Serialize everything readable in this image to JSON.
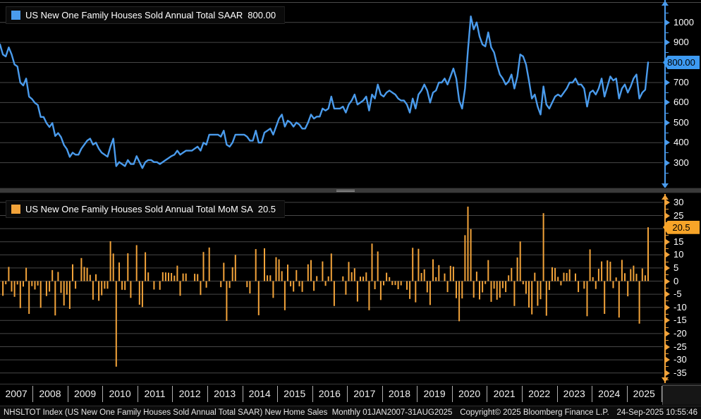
{
  "panels": {
    "top": {
      "legend_label": "US New One Family Houses Sold Annual Total SAAR",
      "legend_value": "800.00",
      "badge": "800.00",
      "color": "#4A9BEC",
      "badge_color": "#3D9AF2"
    },
    "bottom": {
      "legend_label": "US New One Family Houses Sold Annual Total MoM SA",
      "legend_value": "20.5",
      "badge": "20.5",
      "color": "#F2A33A",
      "badge_color": "#F7A428"
    }
  },
  "x_axis": {
    "years": [
      "2007",
      "2008",
      "2009",
      "2010",
      "2011",
      "2012",
      "2013",
      "2014",
      "2015",
      "2016",
      "2017",
      "2018",
      "2019",
      "2020",
      "2021",
      "2022",
      "2023",
      "2024",
      "2025"
    ]
  },
  "status_bar": {
    "left": "NHSLTOT Index (US New One Family Houses Sold Annual Total SAAR) New Home Sales  Monthly 01JAN2007-31AUG2025",
    "center": "Copyright© 2025 Bloomberg Finance L.P.",
    "right": "24-Sep-2025 10:55:46"
  },
  "chart_data": [
    {
      "type": "line",
      "title": "US New One Family Houses Sold Annual Total SAAR",
      "frequency": "monthly",
      "x_start": "2007-01",
      "x_end": "2025-08",
      "ylim": [
        250,
        1060
      ],
      "yticks": [
        1000,
        900,
        800,
        700,
        600,
        500,
        400,
        300
      ],
      "last_value": 800.0,
      "color": "#4A9BEC",
      "legend_position": "top-left",
      "grid": true,
      "values": [
        890,
        840,
        830,
        875,
        840,
        790,
        780,
        700,
        685,
        720,
        630,
        618,
        598,
        588,
        528,
        528,
        498,
        478,
        498,
        433,
        448,
        428,
        388,
        368,
        329,
        350,
        340,
        340,
        370,
        390,
        410,
        420,
        390,
        400,
        370,
        350,
        340,
        330,
        380,
        420,
        283,
        303,
        293,
        283,
        313,
        293,
        293,
        333,
        303,
        273,
        303,
        313,
        313,
        303,
        303,
        293,
        303,
        313,
        323,
        333,
        340,
        360,
        340,
        350,
        360,
        360,
        360,
        370,
        380,
        360,
        400,
        390,
        440,
        440,
        440,
        440,
        430,
        460,
        390,
        380,
        400,
        440,
        440,
        440,
        440,
        430,
        410,
        410,
        460,
        400,
        400,
        450,
        460,
        470,
        440,
        480,
        520,
        540,
        480,
        510,
        500,
        480,
        500,
        490,
        470,
        470,
        500,
        540,
        520,
        530,
        530,
        570,
        560,
        570,
        630,
        570,
        570,
        570,
        580,
        550,
        590,
        610,
        640,
        590,
        600,
        610,
        630,
        560,
        640,
        620,
        690,
        640,
        630,
        650,
        660,
        650,
        640,
        620,
        610,
        610,
        590,
        550,
        620,
        570,
        640,
        660,
        690,
        660,
        600,
        650,
        660,
        700,
        700,
        720,
        690,
        730,
        770,
        720,
        610,
        570,
        670,
        860,
        1030,
        965,
        1000,
        930,
        890,
        880,
        950,
        875,
        850,
        790,
        740,
        720,
        690,
        705,
        740,
        670,
        730,
        840,
        830,
        790,
        710,
        620,
        640,
        580,
        540,
        680,
        590,
        570,
        600,
        630,
        640,
        630,
        650,
        670,
        700,
        700,
        720,
        690,
        690,
        670,
        580,
        650,
        660,
        640,
        670,
        720,
        630,
        680,
        730,
        710,
        720,
        620,
        670,
        690,
        650,
        680,
        720,
        740,
        620,
        650,
        664,
        800
      ]
    },
    {
      "type": "bar",
      "title": "US New One Family Houses Sold Annual Total MoM SA",
      "frequency": "monthly",
      "x_start": "2007-01",
      "x_end": "2025-08",
      "unit": "percent",
      "ylim": [
        -37,
        32
      ],
      "yticks": [
        30,
        25,
        20,
        15,
        10,
        5,
        0,
        -5,
        -10,
        -15,
        -20,
        -25,
        -30,
        -35
      ],
      "last_value": 20.5,
      "color": "#F2A33A",
      "legend_position": "top-left",
      "grid": true,
      "values": [
        0,
        -5.6,
        -1.2,
        5.4,
        -4.0,
        -6.0,
        -1.3,
        -10.3,
        -2.1,
        5.1,
        -12.5,
        -1.9,
        -3.2,
        -1.7,
        -10.2,
        0.0,
        -5.7,
        -4.0,
        4.2,
        -13.1,
        3.5,
        -4.5,
        -9.3,
        -5.2,
        -10.6,
        6.4,
        -2.9,
        0.0,
        8.8,
        5.4,
        5.1,
        2.4,
        -7.1,
        2.6,
        -7.5,
        -5.4,
        -2.9,
        -2.9,
        15.2,
        10.5,
        -32.6,
        7.1,
        -3.3,
        -3.4,
        10.6,
        -6.4,
        0.0,
        13.7,
        -9.0,
        -9.9,
        11.0,
        3.3,
        0.0,
        -3.2,
        0.0,
        -3.3,
        3.4,
        3.3,
        3.2,
        3.1,
        2.1,
        5.9,
        -5.6,
        2.9,
        2.9,
        0.0,
        0.0,
        2.8,
        2.7,
        -5.3,
        11.1,
        -2.5,
        12.8,
        0.0,
        0.0,
        0.0,
        -2.3,
        7.0,
        -15.2,
        -2.6,
        5.3,
        10.0,
        0.0,
        0.0,
        0.0,
        -2.3,
        -4.7,
        0.0,
        12.2,
        -13.0,
        0.0,
        12.5,
        2.2,
        2.2,
        -6.4,
        9.1,
        8.3,
        3.8,
        -11.1,
        6.3,
        -2.0,
        -4.0,
        4.2,
        -2.0,
        -4.1,
        0.0,
        6.4,
        8.0,
        -3.7,
        1.9,
        0.0,
        7.5,
        -1.8,
        1.8,
        10.5,
        -9.5,
        0.0,
        0.0,
        1.8,
        -5.2,
        7.3,
        3.4,
        4.9,
        -7.8,
        1.7,
        1.7,
        3.3,
        -11.1,
        14.3,
        -3.1,
        11.3,
        -7.2,
        -1.6,
        3.2,
        1.5,
        -1.5,
        -1.5,
        -3.1,
        -1.6,
        0.0,
        -3.3,
        -6.8,
        12.7,
        -8.1,
        12.3,
        3.1,
        4.5,
        -4.3,
        -9.1,
        8.3,
        1.5,
        6.1,
        0.0,
        2.9,
        -4.2,
        5.8,
        5.5,
        -6.5,
        -15.3,
        -6.6,
        17.5,
        28.4,
        19.8,
        -6.3,
        3.6,
        -7.0,
        -4.3,
        -1.1,
        8.0,
        -7.9,
        -2.9,
        -7.1,
        -6.3,
        -2.7,
        -4.2,
        2.2,
        5.0,
        -9.5,
        9.0,
        15.1,
        -1.2,
        -4.8,
        -10.1,
        -12.7,
        3.2,
        -9.4,
        -6.9,
        25.9,
        -13.2,
        -3.4,
        5.3,
        5.0,
        1.6,
        -1.6,
        3.2,
        3.1,
        4.5,
        0.0,
        2.9,
        -4.2,
        0.0,
        -2.9,
        -13.4,
        12.1,
        1.5,
        -3.0,
        4.7,
        7.5,
        -12.5,
        7.9,
        7.4,
        -2.7,
        1.4,
        -13.9,
        8.1,
        3.0,
        -5.8,
        4.6,
        5.9,
        2.8,
        -16.2,
        4.8,
        2.2,
        20.5
      ]
    }
  ]
}
